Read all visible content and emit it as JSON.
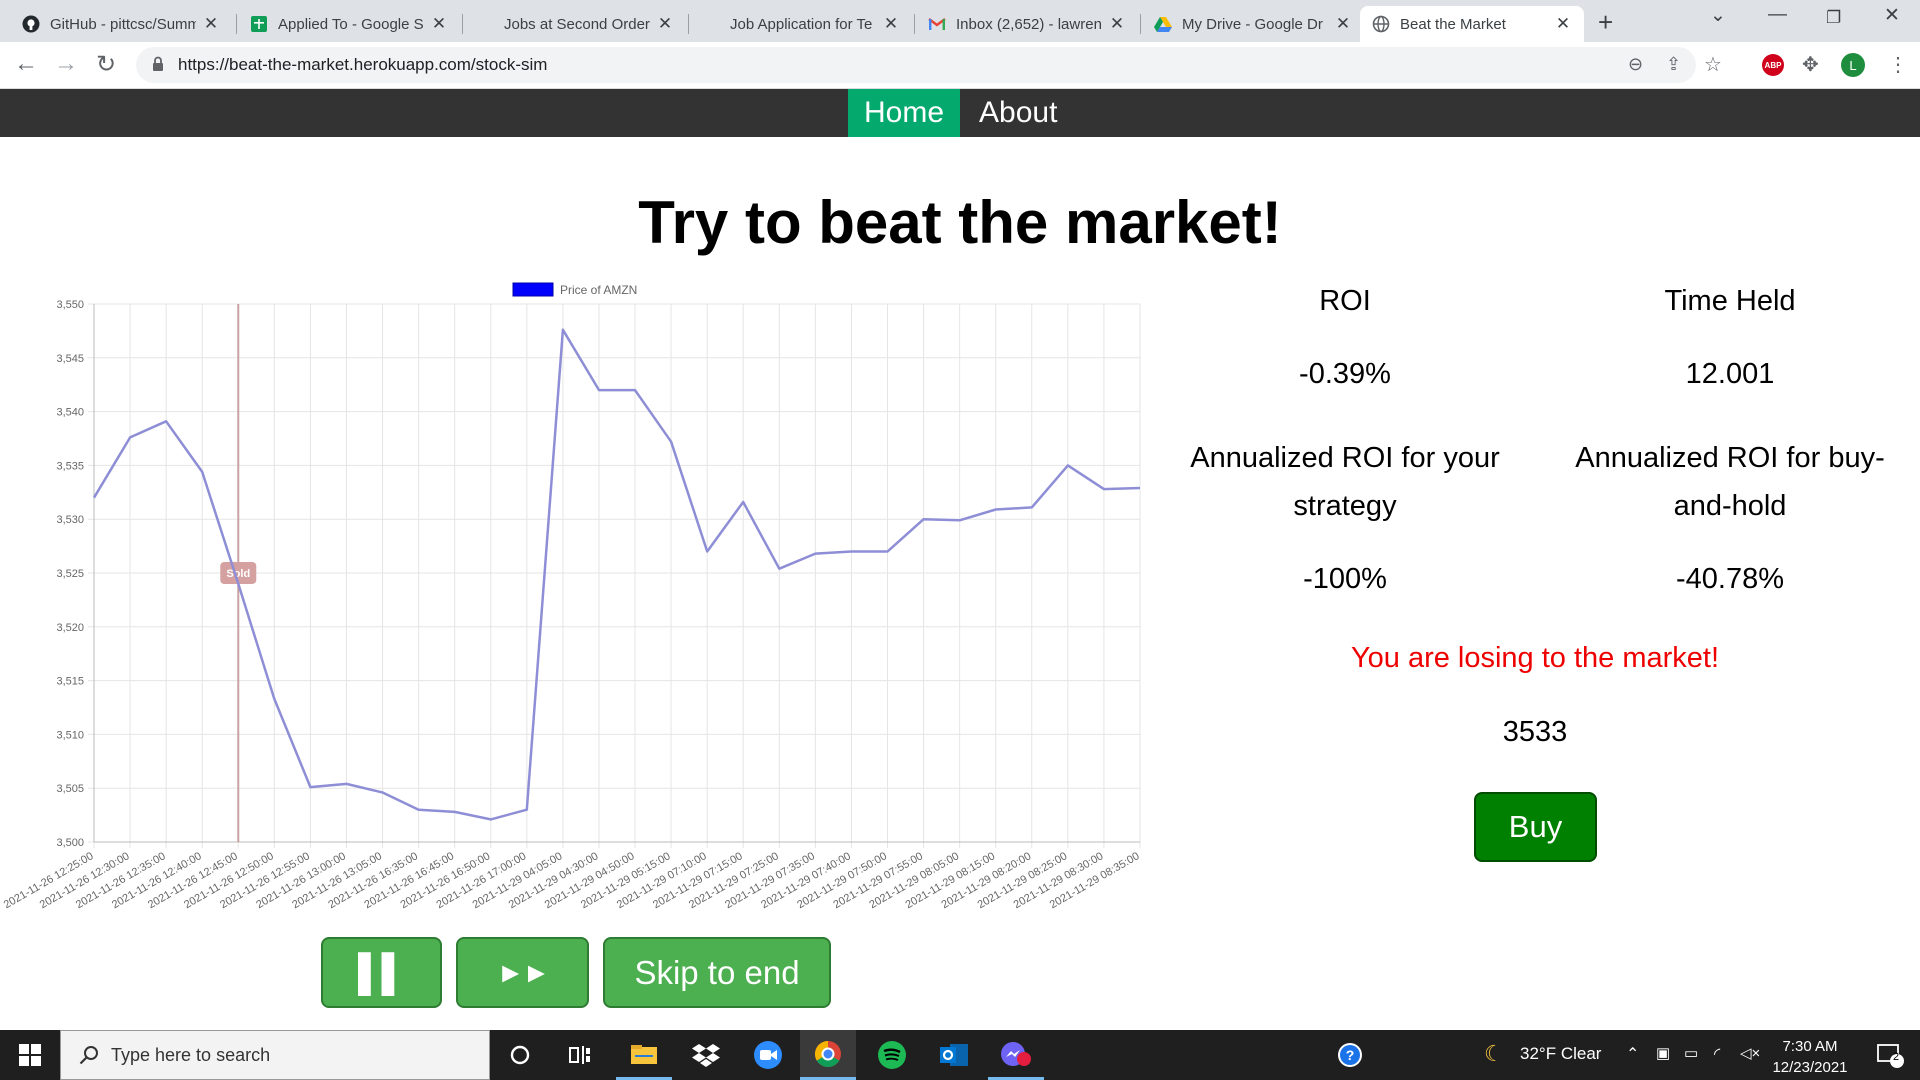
{
  "browser": {
    "tabs": [
      {
        "title": "GitHub - pittcsc/Summ",
        "favicon": "github-icon"
      },
      {
        "title": "Applied To - Google S",
        "favicon": "google-sheets-icon"
      },
      {
        "title": "Jobs at Second Order",
        "favicon": "none"
      },
      {
        "title": "Job Application for Te",
        "favicon": "none"
      },
      {
        "title": "Inbox (2,652) - lawren",
        "favicon": "gmail-icon"
      },
      {
        "title": "My Drive - Google Dr",
        "favicon": "google-drive-icon"
      },
      {
        "title": "Beat the Market",
        "favicon": "globe-icon",
        "active": true
      }
    ],
    "url": "https://beat-the-market.herokuapp.com/stock-sim",
    "abp_label": "ABP",
    "profile_initial": "L"
  },
  "nav": {
    "home": "Home",
    "about": "About"
  },
  "page": {
    "title": "Try to beat the market!"
  },
  "stats": {
    "roi_label": "ROI",
    "roi_value": "-0.39%",
    "time_label": "Time Held",
    "time_value": "12.001",
    "ann_strategy_label_1": "Annualized ROI for your",
    "ann_strategy_label_2": "strategy",
    "ann_strategy_value": "-100%",
    "ann_hold_label_1": "Annualized ROI for buy-",
    "ann_hold_label_2": "and-hold",
    "ann_hold_value": "-40.78%",
    "message": "You are losing to the market!",
    "current_price": "3533",
    "buy_label": "Buy"
  },
  "controls": {
    "pause": "▌▌",
    "fast_forward": "►►",
    "skip": "Skip to end"
  },
  "chart_data": {
    "type": "line",
    "legend": "Price of AMZN",
    "legend_position": "top",
    "line_color": "#8e8ed6",
    "legend_color": "#0000ff",
    "ylim": [
      3500,
      3550
    ],
    "y_ticks": [
      "3,500",
      "3,505",
      "3,510",
      "3,515",
      "3,520",
      "3,525",
      "3,530",
      "3,535",
      "3,540",
      "3,545",
      "3,550"
    ],
    "grid": true,
    "categories": [
      "2021-11-26 12:25:00",
      "2021-11-26 12:30:00",
      "2021-11-26 12:35:00",
      "2021-11-26 12:40:00",
      "2021-11-26 12:45:00",
      "2021-11-26 12:50:00",
      "2021-11-26 12:55:00",
      "2021-11-26 13:00:00",
      "2021-11-26 13:05:00",
      "2021-11-26 16:35:00",
      "2021-11-26 16:45:00",
      "2021-11-26 16:50:00",
      "2021-11-26 17:00:00",
      "2021-11-29 04:05:00",
      "2021-11-29 04:30:00",
      "2021-11-29 04:50:00",
      "2021-11-29 05:15:00",
      "2021-11-29 07:10:00",
      "2021-11-29 07:15:00",
      "2021-11-29 07:25:00",
      "2021-11-29 07:35:00",
      "2021-11-29 07:40:00",
      "2021-11-29 07:50:00",
      "2021-11-29 07:55:00",
      "2021-11-29 08:05:00",
      "2021-11-29 08:15:00",
      "2021-11-29 08:20:00",
      "2021-11-29 08:25:00",
      "2021-11-29 08:30:00",
      "2021-11-29 08:35:00"
    ],
    "values": [
      3532.0,
      3537.6,
      3539.1,
      3534.4,
      3524.0,
      3513.3,
      3505.1,
      3505.4,
      3504.6,
      3503.0,
      3502.8,
      3502.1,
      3503.0,
      3547.6,
      3542.0,
      3542.0,
      3537.2,
      3527.0,
      3531.6,
      3525.4,
      3526.8,
      3527.0,
      3527.0,
      3530.0,
      3529.9,
      3530.9,
      3531.1,
      3535.0,
      3532.8,
      3532.9
    ],
    "annotations": [
      {
        "type": "vertical-line",
        "category": "2021-11-26 12:45:00",
        "label": "Sold",
        "color": "#d4a0a0"
      }
    ]
  },
  "taskbar": {
    "search_placeholder": "Type here to search",
    "weather": "32°F  Clear",
    "time": "7:30 AM",
    "date": "12/23/2021",
    "notification_count": "2"
  }
}
